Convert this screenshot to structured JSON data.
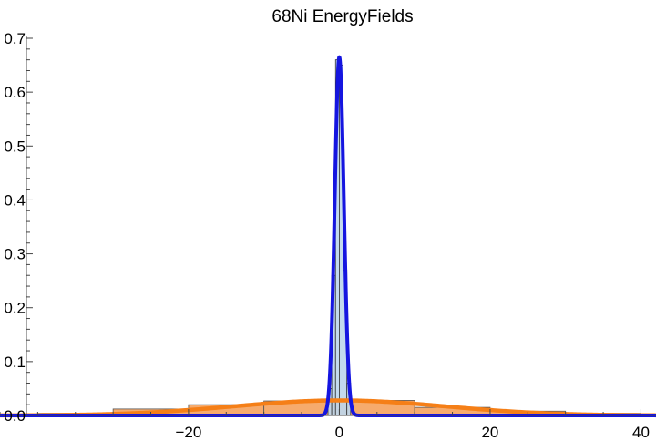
{
  "chart_data": {
    "type": "histogram",
    "title": "68Ni EnergyFields",
    "xlabel": "",
    "ylabel": "",
    "xlim": [
      -45,
      42
    ],
    "ylim": [
      0,
      0.7
    ],
    "x_ticks": [
      -20,
      0,
      20,
      40
    ],
    "x_tick_labels": [
      "−20",
      "0",
      "20",
      "40"
    ],
    "y_ticks": [
      0,
      0.1,
      0.2,
      0.3,
      0.4,
      0.5,
      0.6,
      0.7
    ],
    "y_tick_labels": [
      "0.0",
      "0.1",
      "0.2",
      "0.3",
      "0.4",
      "0.5",
      "0.6",
      "0.7"
    ],
    "grid": false,
    "legend": "none",
    "series": [
      {
        "kind": "histogram",
        "color": "#f5a25d",
        "edge_color": "#555555",
        "bins": [
          {
            "x0": -50,
            "x1": -40,
            "value": 0.002
          },
          {
            "x0": -40,
            "x1": -30,
            "value": 0.004
          },
          {
            "x0": -30,
            "x1": -20,
            "value": 0.012
          },
          {
            "x0": -20,
            "x1": -10,
            "value": 0.02
          },
          {
            "x0": -10,
            "x1": 0,
            "value": 0.027
          },
          {
            "x0": 0,
            "x1": 10,
            "value": 0.028
          },
          {
            "x0": 10,
            "x1": 20,
            "value": 0.015
          },
          {
            "x0": 20,
            "x1": 30,
            "value": 0.008
          },
          {
            "x0": 30,
            "x1": 40,
            "value": 0.004
          },
          {
            "x0": 40,
            "x1": 50,
            "value": 0.002
          }
        ]
      },
      {
        "kind": "curve",
        "shape": "gaussian",
        "color": "#f57f17",
        "mean": 0,
        "sigma": 14,
        "peak": 0.028
      },
      {
        "kind": "histogram",
        "color": "#bcd6ec",
        "edge_color": "#333333",
        "bins": [
          {
            "x0": -1.5,
            "x1": -1,
            "value": 0.05
          },
          {
            "x0": -1,
            "x1": -0.5,
            "value": 0.26
          },
          {
            "x0": -0.5,
            "x1": 0,
            "value": 0.66
          },
          {
            "x0": 0,
            "x1": 0.5,
            "value": 0.65
          },
          {
            "x0": 0.5,
            "x1": 1,
            "value": 0.27
          },
          {
            "x0": 1,
            "x1": 1.5,
            "value": 0.06
          }
        ]
      },
      {
        "kind": "curve",
        "shape": "gaussian",
        "color": "#1515e0",
        "mean": 0,
        "sigma": 0.6,
        "peak": 0.665
      }
    ]
  }
}
